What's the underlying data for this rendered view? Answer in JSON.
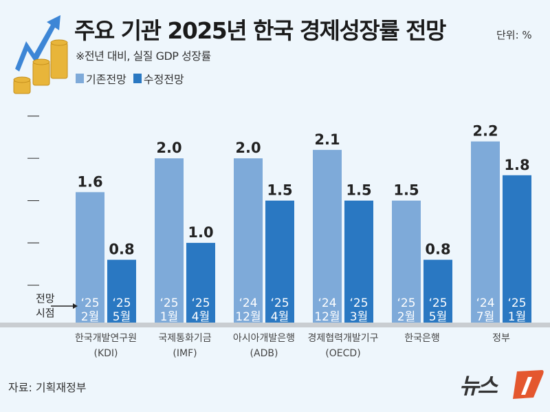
{
  "header": {
    "title": "주요 기관 2025년 한국 경제성장률 전망",
    "unit": "단위: %",
    "subtitle": "※전년 대비, 실질 GDP 성장률"
  },
  "footer": {
    "source": "자료: 기획재정부",
    "logo_text": "뉴스1"
  },
  "forecast_point_label": [
    "전망",
    "시점"
  ],
  "chart_data": {
    "type": "bar",
    "title": "주요 기관 2025년 한국 경제성장률 전망",
    "ylabel": "단위: %",
    "ylim": [
      0,
      2.5
    ],
    "yticks": [
      0.5,
      1.0,
      1.5,
      2.0,
      2.5
    ],
    "grid": false,
    "legend_position": "top-left",
    "categories": [
      {
        "name": "한국개발연구원",
        "abbr": "(KDI)"
      },
      {
        "name": "국제통화기금",
        "abbr": "(IMF)"
      },
      {
        "name": "아시아개발은행",
        "abbr": "(ADB)"
      },
      {
        "name": "경제협력개발기구",
        "abbr": "(OECD)"
      },
      {
        "name": "한국은행",
        "abbr": ""
      },
      {
        "name": "정부",
        "abbr": ""
      }
    ],
    "series": [
      {
        "name": "기존전망",
        "color": "#7eaad9",
        "values": [
          1.6,
          2.0,
          2.0,
          2.1,
          1.5,
          2.2
        ],
        "dates": [
          [
            "‘25",
            "2월"
          ],
          [
            "‘25",
            "1월"
          ],
          [
            "‘24",
            "12월"
          ],
          [
            "‘24",
            "12월"
          ],
          [
            "‘25",
            "2월"
          ],
          [
            "‘24",
            "7월"
          ]
        ]
      },
      {
        "name": "수정전망",
        "color": "#2a78c2",
        "values": [
          0.8,
          1.0,
          1.5,
          1.5,
          0.8,
          1.8
        ],
        "dates": [
          [
            "‘25",
            "5월"
          ],
          [
            "‘25",
            "4월"
          ],
          [
            "‘25",
            "4월"
          ],
          [
            "‘25",
            "3월"
          ],
          [
            "‘25",
            "5월"
          ],
          [
            "‘25",
            "1월"
          ]
        ]
      }
    ]
  }
}
